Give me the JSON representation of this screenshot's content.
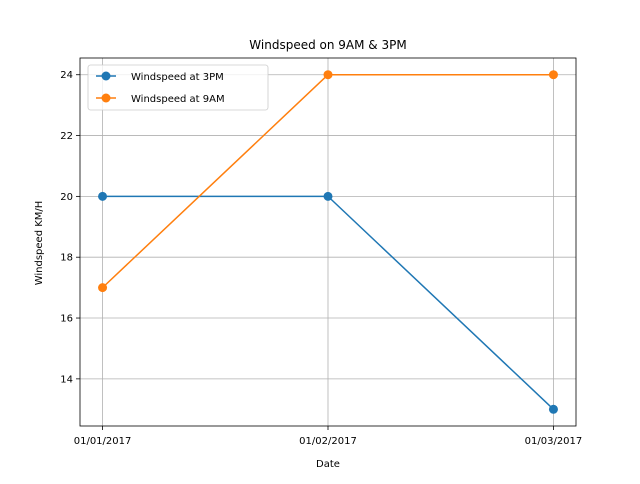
{
  "chart_data": {
    "type": "line",
    "title": "Windspeed on 9AM & 3PM",
    "xlabel": "Date",
    "ylabel": "Windspeed KM/H",
    "categories": [
      "01/01/2017",
      "01/02/2017",
      "01/03/2017"
    ],
    "ylim": [
      12.45,
      24.55
    ],
    "yticks": [
      14,
      16,
      18,
      20,
      22,
      24
    ],
    "grid": true,
    "legend_position": "top-left",
    "series": [
      {
        "name": "Windspeed at 3PM",
        "color": "#1f77b4",
        "values": [
          20,
          20,
          13
        ]
      },
      {
        "name": "Windspeed at 9AM",
        "color": "#ff7f0e",
        "values": [
          17,
          24,
          24
        ]
      }
    ]
  }
}
